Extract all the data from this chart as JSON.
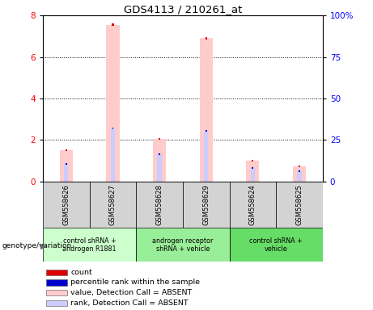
{
  "title": "GDS4113 / 210261_at",
  "samples": [
    "GSM558626",
    "GSM558627",
    "GSM558628",
    "GSM558629",
    "GSM558624",
    "GSM558625"
  ],
  "bar_values": [
    1.5,
    7.55,
    2.05,
    6.9,
    1.0,
    0.72
  ],
  "rank_values": [
    0.85,
    2.55,
    1.3,
    2.45,
    0.65,
    0.48
  ],
  "ylim": [
    0,
    8
  ],
  "y2lim": [
    0,
    100
  ],
  "yticks": [
    0,
    2,
    4,
    6,
    8
  ],
  "y2ticks": [
    0,
    25,
    50,
    75,
    100
  ],
  "absent_bar_color": "#ffcccc",
  "absent_rank_color": "#ccccff",
  "count_color": "#dd0000",
  "rank_count_color": "#0000cc",
  "group_configs": [
    {
      "start": 0,
      "end": 1,
      "label": "control shRNA +\nandrogen R1881",
      "color": "#ccffcc"
    },
    {
      "start": 2,
      "end": 3,
      "label": "androgen receptor\nshRNA + vehicle",
      "color": "#99ee99"
    },
    {
      "start": 4,
      "end": 5,
      "label": "control shRNA +\nvehicle",
      "color": "#66dd66"
    }
  ],
  "legend_items": [
    {
      "label": "count",
      "color": "#dd0000"
    },
    {
      "label": "percentile rank within the sample",
      "color": "#0000cc"
    },
    {
      "label": "value, Detection Call = ABSENT",
      "color": "#ffcccc"
    },
    {
      "label": "rank, Detection Call = ABSENT",
      "color": "#ccccff"
    }
  ]
}
